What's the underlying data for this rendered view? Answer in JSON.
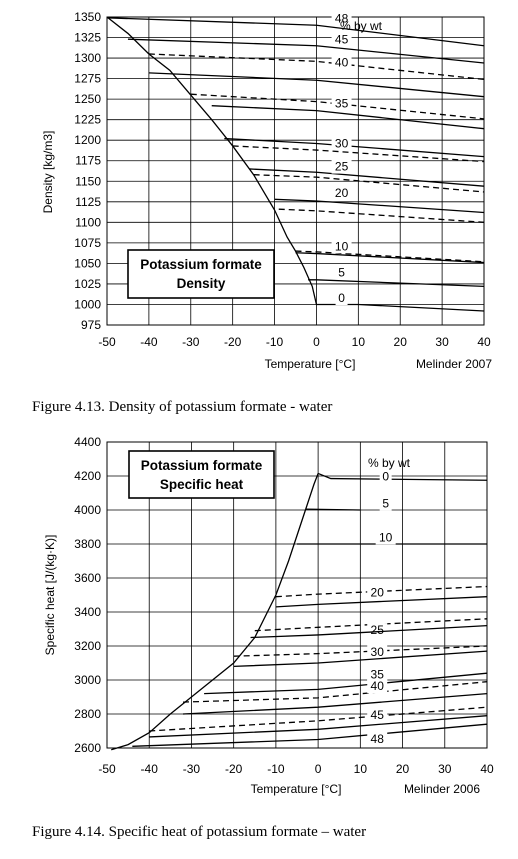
{
  "chart_data": [
    {
      "type": "line",
      "box_title": [
        "Potassium formate",
        "Density"
      ],
      "xlabel": "Temperature [°C]",
      "ylabel": "Density [kg/m3]",
      "credit": "Melinder  2007",
      "caption": "Figure 4.13. Density of potassium formate - water",
      "legend_title": "% by wt",
      "xlim": [
        -50,
        40
      ],
      "ylim": [
        975,
        1350
      ],
      "xticks": [
        "-50",
        "-40",
        "-30",
        "-20",
        "-10",
        "0",
        "10",
        "20",
        "30",
        "40"
      ],
      "yticks": [
        "975",
        "1000",
        "1025",
        "1050",
        "1075",
        "1100",
        "1125",
        "1150",
        "1175",
        "1200",
        "1225",
        "1250",
        "1275",
        "1300",
        "1325",
        "1350"
      ],
      "freezing_curve": {
        "x": [
          -50,
          -45,
          -40,
          -35,
          -30,
          -25,
          -20,
          -15,
          -10,
          -7,
          -5,
          -3,
          -1,
          0
        ],
        "y": [
          1350,
          1330,
          1305,
          1285,
          1255,
          1225,
          1193,
          1158,
          1115,
          1082,
          1065,
          1045,
          1022,
          1000
        ]
      },
      "series": [
        {
          "name": "48",
          "label_at": [
            6,
            1343
          ],
          "x": [
            -50,
            0,
            40
          ],
          "y": [
            1349,
            1340,
            1315
          ],
          "dash": false
        },
        {
          "name": "45",
          "label_at": [
            6,
            1318
          ],
          "x": [
            -45,
            0,
            40
          ],
          "y": [
            1323,
            1315,
            1294
          ],
          "dash": false
        },
        {
          "name": "40",
          "label_at": [
            6,
            1290
          ],
          "x": [
            -40,
            0,
            40
          ],
          "y": [
            1305,
            1296,
            1274
          ],
          "dash": true
        },
        {
          "name": "40 (solid)",
          "x": [
            -40,
            0,
            40
          ],
          "y": [
            1282,
            1273,
            1253
          ],
          "dash": false
        },
        {
          "name": "35",
          "label_at": [
            6,
            1240
          ],
          "x": [
            -30,
            0,
            40
          ],
          "y": [
            1256,
            1247,
            1226
          ],
          "dash": true
        },
        {
          "name": "35 (solid)",
          "x": [
            -25,
            0,
            40
          ],
          "y": [
            1242,
            1236,
            1214
          ],
          "dash": false
        },
        {
          "name": "30",
          "label_at": [
            6,
            1191
          ],
          "x": [
            -22,
            0,
            40
          ],
          "y": [
            1202,
            1196,
            1180
          ],
          "dash": false
        },
        {
          "name": "30 (dashed)",
          "x": [
            -20,
            0,
            40
          ],
          "y": [
            1193,
            1188,
            1174
          ],
          "dash": true
        },
        {
          "name": "25",
          "label_at": [
            6,
            1163
          ],
          "x": [
            -16,
            0,
            40
          ],
          "y": [
            1165,
            1161,
            1144
          ],
          "dash": false
        },
        {
          "name": "25 (dashed)",
          "x": [
            -15,
            0,
            40
          ],
          "y": [
            1158,
            1155,
            1137
          ],
          "dash": true
        },
        {
          "name": "20",
          "label_at": [
            6,
            1131
          ],
          "x": [
            -10,
            0,
            40
          ],
          "y": [
            1128,
            1126,
            1112
          ],
          "dash": false
        },
        {
          "name": "20 (dashed)",
          "x": [
            -9,
            0,
            40
          ],
          "y": [
            1116,
            1114,
            1100
          ],
          "dash": true
        },
        {
          "name": "10",
          "label_at": [
            6,
            1066
          ],
          "x": [
            -5,
            0,
            40
          ],
          "y": [
            1065,
            1064,
            1052
          ],
          "dash": true
        },
        {
          "name": "10 (solid)",
          "x": [
            -5,
            0,
            40
          ],
          "y": [
            1063,
            1062,
            1051
          ],
          "dash": false
        },
        {
          "name": "5",
          "label_at": [
            6,
            1034
          ],
          "x": [
            -2,
            0,
            40
          ],
          "y": [
            1030,
            1030,
            1022
          ],
          "dash": false
        },
        {
          "name": "0",
          "label_at": [
            6,
            1003
          ],
          "x": [
            0,
            10,
            40
          ],
          "y": [
            1000,
            1000,
            992
          ],
          "dash": false
        }
      ]
    },
    {
      "type": "line",
      "box_title": [
        "Potassium formate",
        "Specific heat"
      ],
      "xlabel": "Temperature [°C]",
      "ylabel": "Specific heat [J/(kg·K)]",
      "credit": "Melinder  2006",
      "caption": "Figure 4.14. Specific heat of potassium formate – water",
      "legend_title": "% by wt",
      "xlim": [
        -50,
        40
      ],
      "ylim": [
        2600,
        4400
      ],
      "xticks": [
        "-50",
        "-40",
        "-30",
        "-20",
        "-10",
        "0",
        "10",
        "20",
        "30",
        "40"
      ],
      "yticks": [
        "2600",
        "2800",
        "3000",
        "3200",
        "3400",
        "3600",
        "3800",
        "4000",
        "4200",
        "4400"
      ],
      "freezing_curve": {
        "x": [
          -49,
          -45,
          -40,
          -35,
          -30,
          -25,
          -20,
          -15,
          -10,
          -7,
          -5,
          -3,
          -1,
          0
        ],
        "y": [
          2590,
          2620,
          2690,
          2800,
          2900,
          3000,
          3100,
          3250,
          3500,
          3700,
          3850,
          4000,
          4150,
          4215
        ]
      },
      "series": [
        {
          "name": "0",
          "label_at": [
            16,
            4175
          ],
          "x": [
            0,
            3,
            40
          ],
          "y": [
            4215,
            4185,
            4175
          ],
          "dash": false
        },
        {
          "name": "5",
          "label_at": [
            16,
            4015
          ],
          "x": [
            -3,
            10
          ],
          "y": [
            4005,
            4000
          ],
          "dash": false
        },
        {
          "name": "10",
          "label_at": [
            16,
            3815
          ],
          "x": [
            -5,
            0,
            40
          ],
          "y": [
            3800,
            3800,
            3800
          ],
          "dash": false
        },
        {
          "name": "20",
          "label_at": [
            14,
            3490
          ],
          "x": [
            -10,
            0,
            40
          ],
          "y": [
            3490,
            3505,
            3550
          ],
          "dash": true
        },
        {
          "name": "20 (solid)",
          "x": [
            -10,
            0,
            40
          ],
          "y": [
            3430,
            3445,
            3490
          ],
          "dash": false
        },
        {
          "name": "25",
          "label_at": [
            14,
            3270
          ],
          "x": [
            -15,
            0,
            40
          ],
          "y": [
            3290,
            3310,
            3360
          ],
          "dash": true
        },
        {
          "name": "25 (solid)",
          "x": [
            -16,
            0,
            40
          ],
          "y": [
            3250,
            3265,
            3320
          ],
          "dash": false
        },
        {
          "name": "30",
          "label_at": [
            14,
            3140
          ],
          "x": [
            -20,
            0,
            40
          ],
          "y": [
            3140,
            3155,
            3200
          ],
          "dash": true
        },
        {
          "name": "30 (solid)",
          "x": [
            -20,
            0,
            40
          ],
          "y": [
            3080,
            3100,
            3170
          ],
          "dash": false
        },
        {
          "name": "35",
          "label_at": [
            14,
            3010
          ],
          "x": [
            -27,
            0,
            40
          ],
          "y": [
            2920,
            2945,
            3040
          ],
          "dash": false
        },
        {
          "name": "40",
          "label_at": [
            14,
            2940
          ],
          "x": [
            -32,
            0,
            40
          ],
          "y": [
            2870,
            2895,
            2990
          ],
          "dash": true
        },
        {
          "name": "40 (solid)",
          "x": [
            -32,
            0,
            40
          ],
          "y": [
            2800,
            2840,
            2920
          ],
          "dash": false
        },
        {
          "name": "45",
          "label_at": [
            14,
            2770
          ],
          "x": [
            -40,
            0,
            40
          ],
          "y": [
            2700,
            2760,
            2840
          ],
          "dash": true
        },
        {
          "name": "45 (solid)",
          "x": [
            -40,
            0,
            40
          ],
          "y": [
            2665,
            2710,
            2790
          ],
          "dash": false
        },
        {
          "name": "48",
          "label_at": [
            14,
            2630
          ],
          "x": [
            -44,
            0,
            40
          ],
          "y": [
            2610,
            2650,
            2740
          ],
          "dash": false
        }
      ]
    }
  ]
}
